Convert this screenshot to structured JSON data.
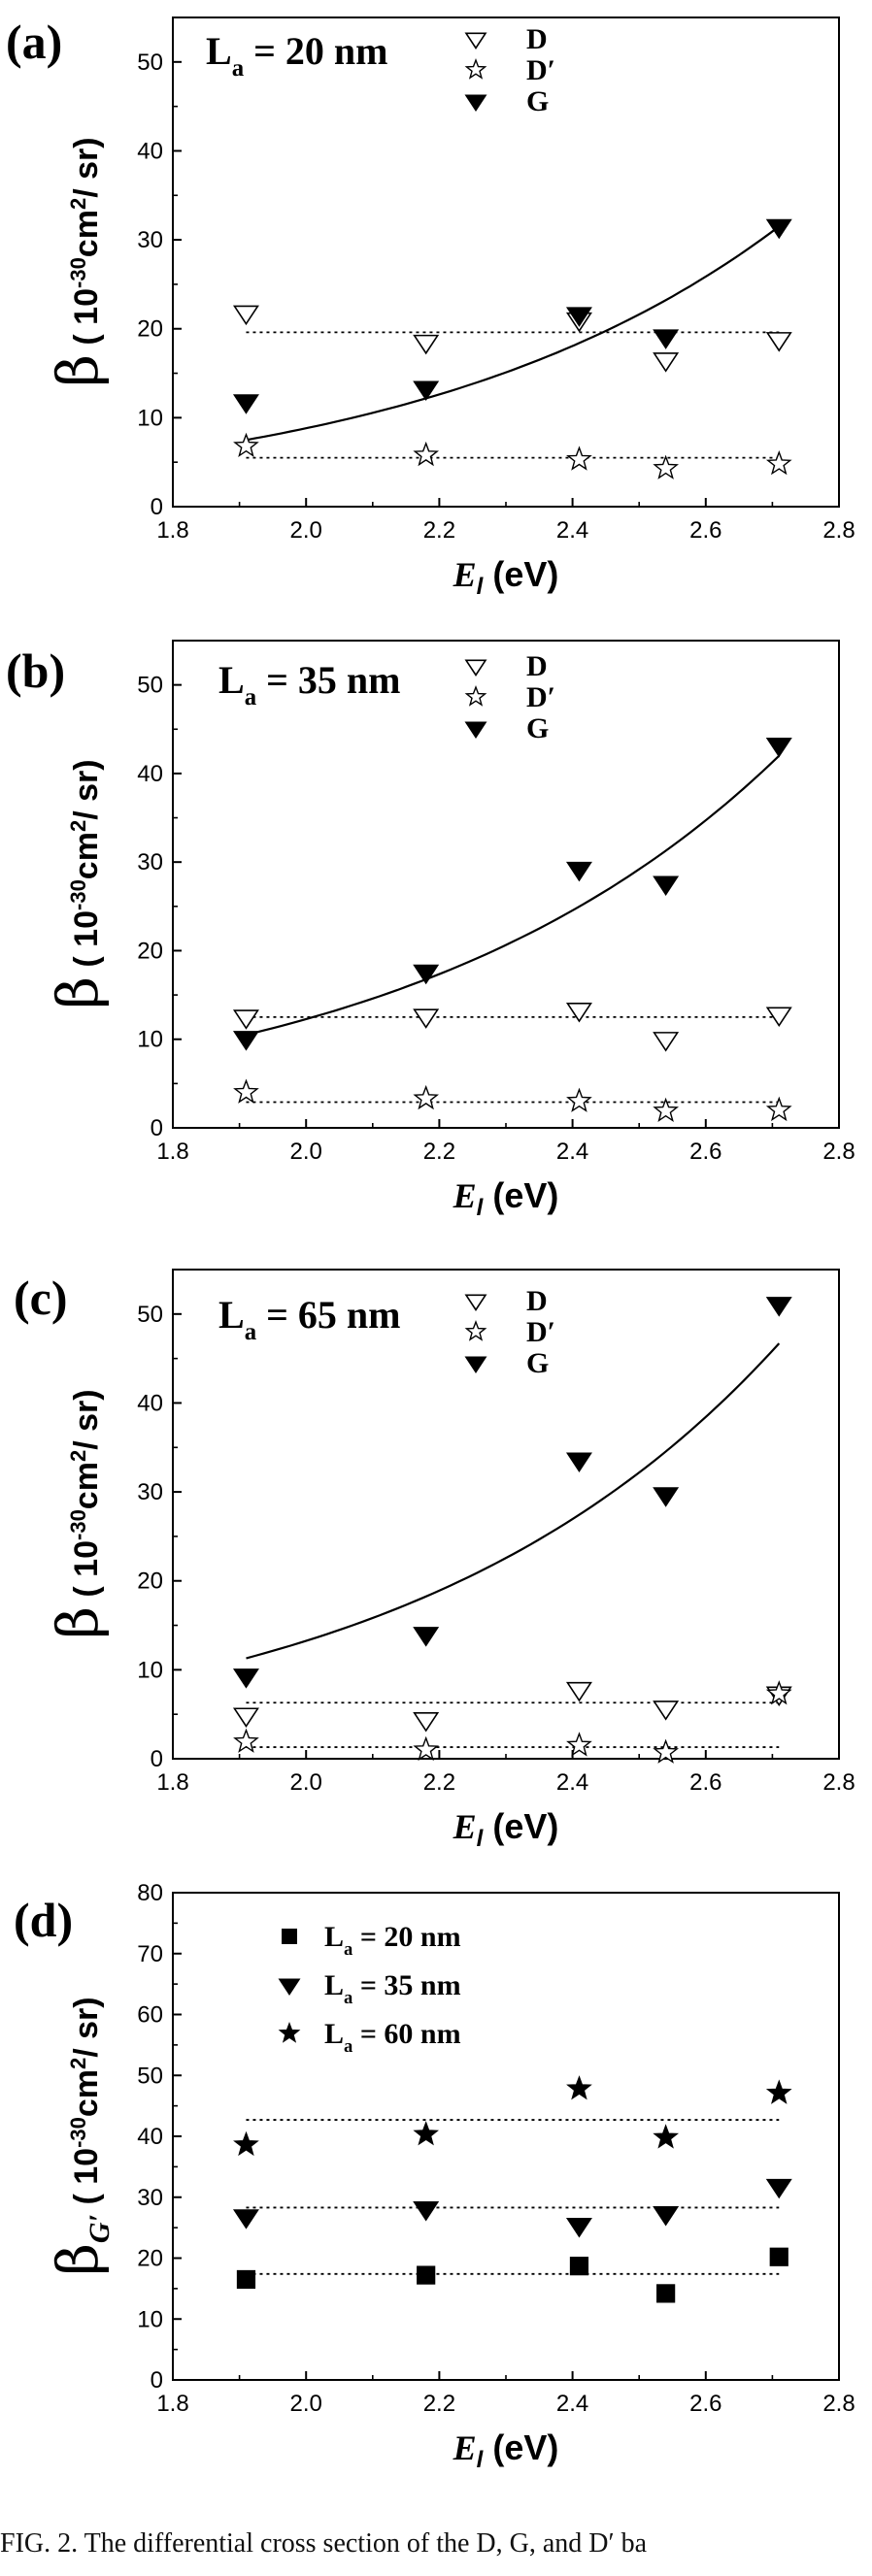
{
  "caption": "FIG. 2. The differential cross section of the D, G, and D′ ba",
  "chart_data": [
    {
      "panel": "(a)",
      "type": "scatter",
      "annotation": "L_a = 20 nm",
      "ylabel": "β ( 10⁻³⁰cm²/ sr)",
      "xlabel": "E_l (eV)",
      "xlim": [
        1.8,
        2.8
      ],
      "ylim": [
        0,
        55
      ],
      "xticks": [
        "1.8",
        "2.0",
        "2.2",
        "2.4",
        "2.6",
        "2.8"
      ],
      "yticks": [
        "0",
        "10",
        "20",
        "30",
        "40",
        "50"
      ],
      "x": [
        1.91,
        2.18,
        2.41,
        2.54,
        2.71
      ],
      "series": [
        {
          "name": "D",
          "marker": "open-down-triangle",
          "values": [
            21.8,
            18.5,
            21.0,
            16.5,
            18.8
          ],
          "fit": {
            "kind": "constant",
            "value": 19.6
          }
        },
        {
          "name": "D'",
          "marker": "open-star",
          "values": [
            6.8,
            5.8,
            5.3,
            4.3,
            4.8
          ],
          "fit": {
            "kind": "constant",
            "value": 5.5
          }
        },
        {
          "name": "G",
          "marker": "filled-down-triangle",
          "values": [
            11.8,
            13.3,
            21.6,
            19.1,
            31.5
          ],
          "fit": {
            "kind": "exponential",
            "x": [
              1.91,
              2.71
            ],
            "y": [
              7.5,
              31.5
            ]
          }
        }
      ]
    },
    {
      "panel": "(b)",
      "type": "scatter",
      "annotation": "L_a = 35 nm",
      "ylabel": "β ( 10⁻³⁰cm²/ sr)",
      "xlabel": "E_l (eV)",
      "xlim": [
        1.8,
        2.8
      ],
      "ylim": [
        0,
        55
      ],
      "xticks": [
        "1.8",
        "2.0",
        "2.2",
        "2.4",
        "2.6",
        "2.8"
      ],
      "yticks": [
        "0",
        "10",
        "20",
        "30",
        "40",
        "50"
      ],
      "x": [
        1.91,
        2.18,
        2.41,
        2.54,
        2.71
      ],
      "series": [
        {
          "name": "D",
          "marker": "open-down-triangle",
          "values": [
            12.5,
            12.6,
            13.3,
            10.0,
            12.8
          ],
          "fit": {
            "kind": "constant",
            "value": 12.5
          }
        },
        {
          "name": "D'",
          "marker": "open-star",
          "values": [
            4.0,
            3.3,
            3.0,
            1.9,
            2.0
          ],
          "fit": {
            "kind": "constant",
            "value": 2.9
          }
        },
        {
          "name": "G",
          "marker": "filled-down-triangle",
          "values": [
            10.1,
            17.6,
            29.2,
            27.6,
            43.2
          ],
          "fit": {
            "kind": "exponential",
            "x": [
              1.91,
              2.71
            ],
            "y": [
              10.5,
              42.0
            ]
          }
        }
      ]
    },
    {
      "panel": "(c)",
      "type": "scatter",
      "annotation": "L_a = 65 nm",
      "ylabel": "β ( 10⁻³⁰cm²/ sr)",
      "xlabel": "E_l (eV)",
      "xlim": [
        1.8,
        2.8
      ],
      "ylim": [
        0,
        55
      ],
      "xticks": [
        "1.8",
        "2.0",
        "2.2",
        "2.4",
        "2.6",
        "2.8"
      ],
      "yticks": [
        "0",
        "10",
        "20",
        "30",
        "40",
        "50"
      ],
      "x": [
        1.91,
        2.18,
        2.41,
        2.54,
        2.71
      ],
      "series": [
        {
          "name": "D",
          "marker": "open-down-triangle",
          "values": [
            4.9,
            4.4,
            7.8,
            5.7,
            7.3
          ],
          "fit": {
            "kind": "constant",
            "value": 6.3
          }
        },
        {
          "name": "D'",
          "marker": "open-star",
          "values": [
            1.9,
            1.0,
            1.5,
            0.7,
            7.3
          ],
          "fit": {
            "kind": "constant",
            "value": 1.3
          }
        },
        {
          "name": "G",
          "marker": "filled-down-triangle",
          "values": [
            9.3,
            14.0,
            33.6,
            29.7,
            51.1
          ],
          "fit": {
            "kind": "exponential",
            "x": [
              1.91,
              2.71
            ],
            "y": [
              11.3,
              46.7
            ]
          }
        }
      ]
    },
    {
      "panel": "(d)",
      "type": "scatter",
      "ylabel": "β_G′ ( 10⁻³⁰cm²/ sr)",
      "xlabel": "E_l (eV)",
      "xlim": [
        1.8,
        2.8
      ],
      "ylim": [
        0,
        80
      ],
      "xticks": [
        "1.8",
        "2.0",
        "2.2",
        "2.4",
        "2.6",
        "2.8"
      ],
      "yticks": [
        "0",
        "10",
        "20",
        "30",
        "40",
        "50",
        "60",
        "70",
        "80"
      ],
      "x": [
        1.91,
        2.18,
        2.41,
        2.54,
        2.71
      ],
      "series": [
        {
          "name": "L_a = 20 nm",
          "marker": "filled-square",
          "values": [
            16.5,
            17.2,
            18.7,
            14.2,
            20.2
          ],
          "fit": {
            "kind": "constant",
            "value": 17.4
          }
        },
        {
          "name": "L_a = 35 nm",
          "marker": "filled-down-triangle",
          "values": [
            26.8,
            28.1,
            25.4,
            27.3,
            31.8
          ],
          "fit": {
            "kind": "constant",
            "value": 28.3
          }
        },
        {
          "name": "L_a = 60 nm",
          "marker": "filled-star",
          "values": [
            38.6,
            40.3,
            47.8,
            39.8,
            47.1
          ],
          "fit": {
            "kind": "constant",
            "value": 42.7
          }
        }
      ]
    }
  ]
}
